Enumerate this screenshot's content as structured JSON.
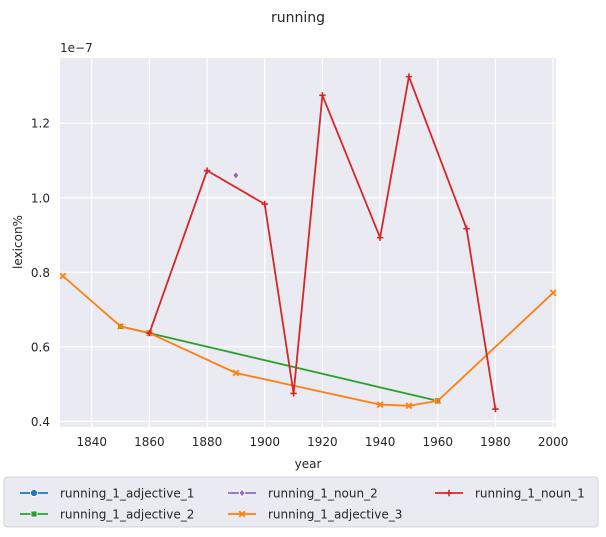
{
  "chart_data": {
    "type": "line",
    "title": "running",
    "xlabel": "year",
    "ylabel": "lexicon%",
    "y_multiplier": "1e−7",
    "xlim": [
      1829,
      2001
    ],
    "ylim": [
      0.385,
      1.375
    ],
    "x_ticks": [
      1840,
      1860,
      1880,
      1900,
      1920,
      1940,
      1960,
      1980,
      2000
    ],
    "y_ticks": [
      0.4,
      0.6,
      0.8,
      1.0,
      1.2
    ],
    "y_tick_labels": [
      "0.4",
      "0.6",
      "0.8",
      "1.0",
      "1.2"
    ],
    "grid": true,
    "legend_position": "bottom",
    "series": [
      {
        "name": "running_1_adjective_1",
        "color": "#1f77b4",
        "marker": "circle",
        "points": []
      },
      {
        "name": "running_1_adjective_2",
        "color": "#2ca02c",
        "marker": "square",
        "points": [
          [
            1850,
            0.655
          ],
          [
            1860,
            0.637
          ],
          [
            1960,
            0.455
          ]
        ]
      },
      {
        "name": "running_1_noun_2",
        "color": "#9467bd",
        "marker": "diamond",
        "points": [
          [
            1890,
            1.06
          ]
        ]
      },
      {
        "name": "running_1_adjective_3",
        "color": "#ff7f0e",
        "marker": "x",
        "points": [
          [
            1830,
            0.79
          ],
          [
            1850,
            0.655
          ],
          [
            1860,
            0.637
          ],
          [
            1890,
            0.53
          ],
          [
            1940,
            0.445
          ],
          [
            1950,
            0.442
          ],
          [
            1960,
            0.455
          ],
          [
            2000,
            0.745
          ]
        ]
      },
      {
        "name": "running_1_noun_1",
        "color": "#d62728",
        "marker": "plus",
        "points": [
          [
            1860,
            0.637
          ],
          [
            1880,
            1.073
          ],
          [
            1900,
            0.983
          ],
          [
            1910,
            0.475
          ],
          [
            1920,
            1.275
          ],
          [
            1940,
            0.893
          ],
          [
            1950,
            1.325
          ],
          [
            1970,
            0.917
          ],
          [
            1980,
            0.433
          ]
        ]
      }
    ]
  }
}
